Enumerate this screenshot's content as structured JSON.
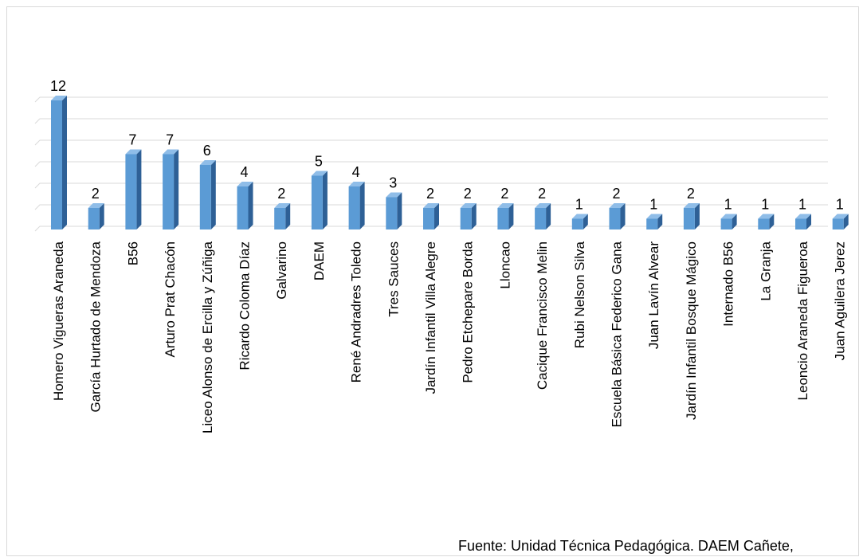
{
  "chart_data": {
    "type": "bar",
    "style": "3d-column",
    "categories": [
      "Homero Vigueras Araneda",
      "García Hurtado de Mendoza",
      "B56",
      "Arturo Prat Chacón",
      "Liceo Alonso de Ercilla y Zúñiga",
      "Ricardo Coloma Díaz",
      "Galvarino",
      "DAEM",
      "René Andradres Toledo",
      "Tres Sauces",
      "Jardín Infantil Villa Alegre",
      "Pedro Etchepare Borda",
      "Lloncao",
      "Cacique Francisco Melin",
      "Rubi Nelson Silva",
      "Escuela Básica Federico Gana",
      "Juan Lavín Alvear",
      "Jardín Infantil Bosque Mágico",
      "Internado B56",
      "La Granja",
      "Leoncio Araneda Figueroa",
      "Juan Aguilera Jerez"
    ],
    "values": [
      12,
      2,
      7,
      7,
      6,
      4,
      2,
      5,
      4,
      3,
      2,
      2,
      2,
      2,
      1,
      2,
      1,
      2,
      1,
      1,
      1,
      1
    ],
    "data_labels": [
      "12",
      "2",
      "7",
      "7",
      "6",
      "4",
      "2",
      "5",
      "4",
      "3",
      "2",
      "2",
      "2",
      "2",
      "1",
      "2",
      "1",
      "2",
      "1",
      "1",
      "1",
      "1"
    ],
    "title": "",
    "xlabel": "",
    "ylabel": "",
    "ylim": [
      0,
      12
    ],
    "grid": true,
    "legend": "none",
    "colors": {
      "bar_front": "#5b9bd5",
      "bar_side": "#2e6096",
      "bar_top": "#8fbde8",
      "grid": "#d9d9d9",
      "text": "#000000"
    }
  },
  "source_note": "Fuente: Unidad Técnica Pedagógica. DAEM Cañete,"
}
